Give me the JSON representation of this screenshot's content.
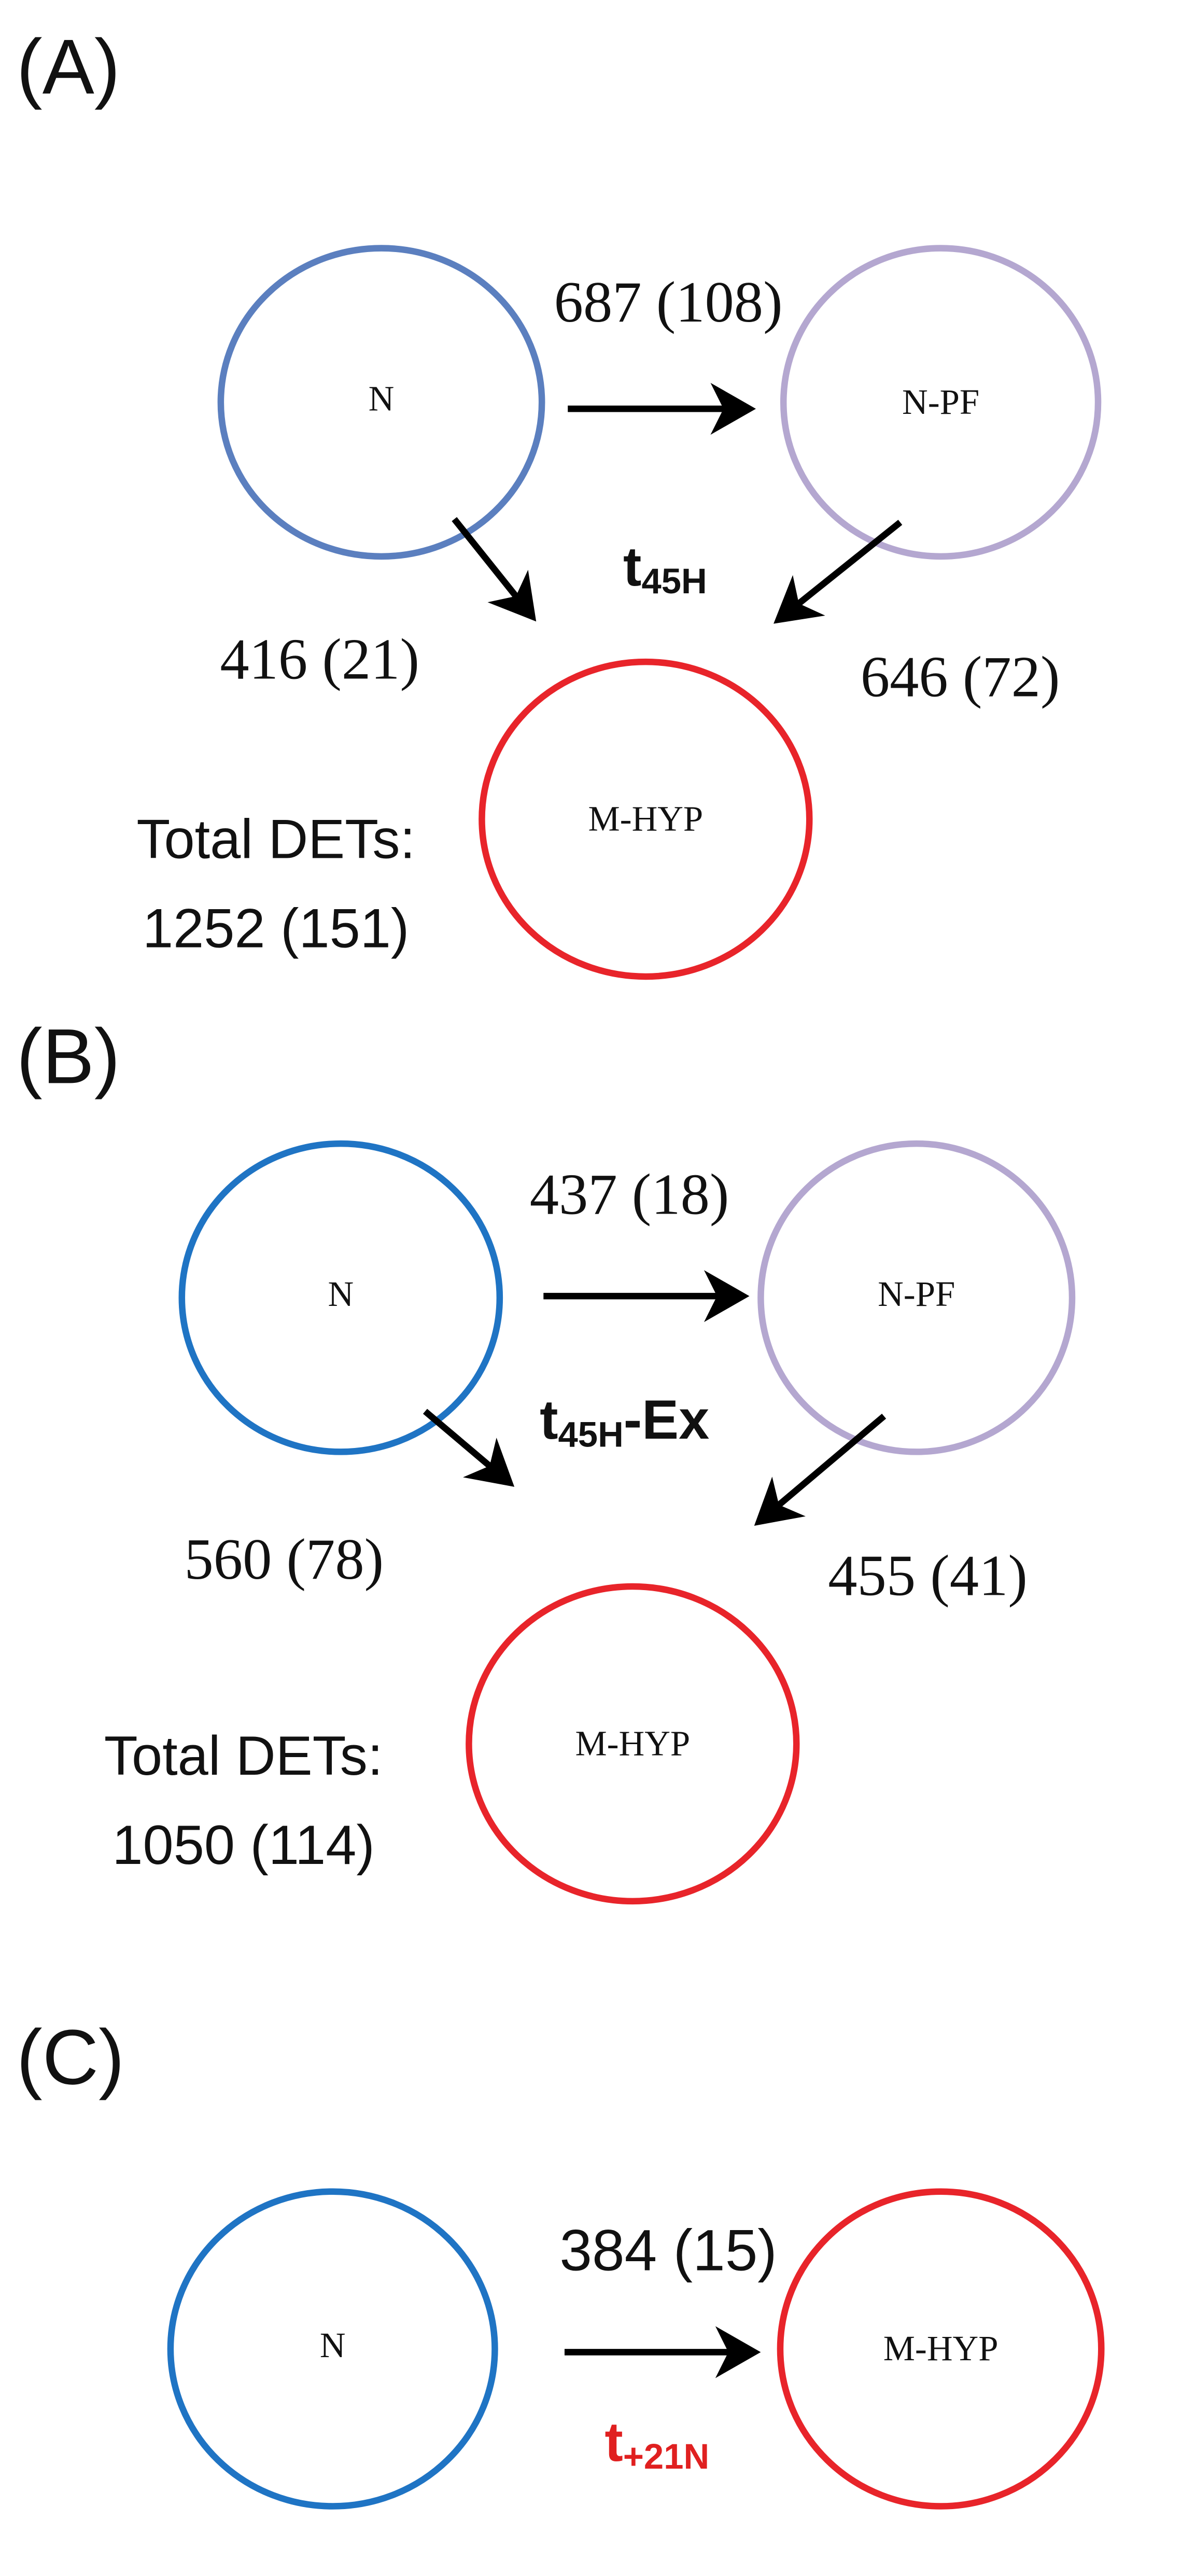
{
  "panels": [
    {
      "label": "(A)",
      "nodes": [
        {
          "label": "N"
        },
        {
          "label": "N-PF"
        },
        {
          "label": "M-HYP"
        }
      ],
      "edges": [
        {
          "label": "687 (108)"
        },
        {
          "label": "416 (21)"
        },
        {
          "label": "646 (72)"
        }
      ],
      "condition": {
        "base": "t",
        "sub": "45H"
      },
      "total": {
        "label": "Total DETs:",
        "value": "1252 (151)"
      }
    },
    {
      "label": "(B)",
      "nodes": [
        {
          "label": "N"
        },
        {
          "label": "N-PF"
        },
        {
          "label": "M-HYP"
        }
      ],
      "edges": [
        {
          "label": "437 (18)"
        },
        {
          "label": "560 (78)"
        },
        {
          "label": "455 (41)"
        }
      ],
      "condition": {
        "base": "t",
        "sub": "45H",
        "suffix": "-Ex"
      },
      "total": {
        "label": "Total DETs:",
        "value": "1050 (114)"
      }
    },
    {
      "label": "(C)",
      "nodes": [
        {
          "label": "N"
        },
        {
          "label": "M-HYP"
        }
      ],
      "edges": [
        {
          "label": "384 (15)"
        }
      ],
      "condition": {
        "base": "t",
        "sub": "+21N"
      }
    }
  ]
}
